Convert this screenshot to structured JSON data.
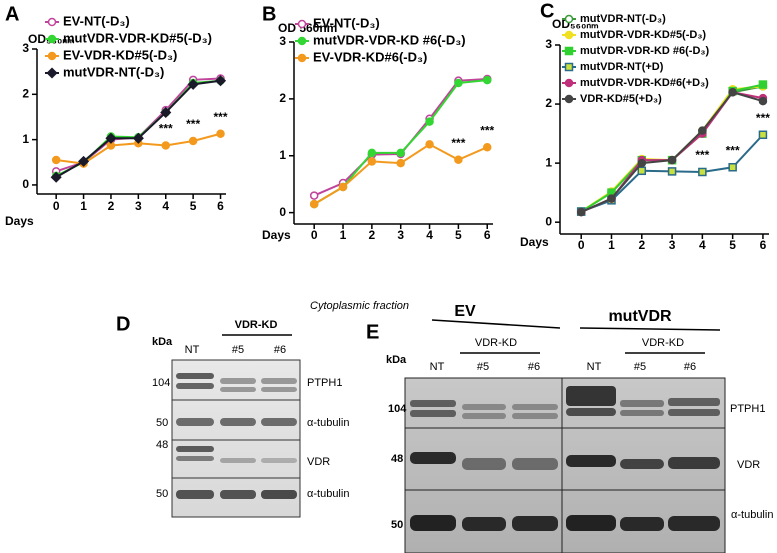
{
  "chart_data": [
    {
      "type": "line",
      "panel": "A",
      "ylabel": "OD₅₆₀ₙₘ",
      "xlabel": "Days",
      "xlim": [
        -0.7,
        6.2
      ],
      "ylim": [
        -0.2,
        3
      ],
      "xticks": [
        0,
        1,
        2,
        3,
        4,
        5,
        6
      ],
      "yticks": [
        0,
        1,
        2,
        3
      ],
      "x": [
        0,
        1,
        2,
        3,
        4,
        5,
        6
      ],
      "series": [
        {
          "name": "EV-NT(-D₃)",
          "color": "#c0449c",
          "marker": "circle",
          "fill": "#ffffff",
          "values": [
            0.3,
            0.5,
            1.0,
            1.05,
            1.65,
            2.32,
            2.35
          ]
        },
        {
          "name": "mutVDR-VDR-KD#5(-D₃)",
          "color": "#33d633",
          "marker": "circle",
          "fill": "#33d633",
          "values": [
            0.2,
            0.5,
            1.07,
            1.05,
            1.6,
            2.25,
            2.3
          ]
        },
        {
          "name": "EV-VDR-KD#5(-D₃)",
          "color": "#f39a1e",
          "marker": "circle",
          "fill": "#f39a1e",
          "values": [
            0.55,
            0.47,
            0.87,
            0.92,
            0.87,
            0.97,
            1.13
          ]
        },
        {
          "name": "mutVDR-NT(-D₃)",
          "color": "#1a1a2a",
          "marker": "diamond",
          "fill": "#1a1a2a",
          "values": [
            0.17,
            0.52,
            1.03,
            1.03,
            1.6,
            2.22,
            2.3
          ]
        }
      ],
      "annotations": {
        "text": "***",
        "x": [
          4,
          5,
          6
        ]
      }
    },
    {
      "type": "line",
      "panel": "B",
      "ylabel": "OD 560nm",
      "xlabel": "Days",
      "xlim": [
        -0.7,
        6.2
      ],
      "ylim": [
        -0.2,
        3
      ],
      "xticks": [
        0,
        1,
        2,
        3,
        4,
        5,
        6
      ],
      "yticks": [
        0,
        1,
        2,
        3
      ],
      "x": [
        0,
        1,
        2,
        3,
        4,
        5,
        6
      ],
      "series": [
        {
          "name": "EV-NT(-D₃)",
          "color": "#c0449c",
          "marker": "circle",
          "fill": "#ffffff",
          "values": [
            0.3,
            0.52,
            1.02,
            1.03,
            1.65,
            2.32,
            2.35
          ]
        },
        {
          "name": "mutVDR-VDR-KD #6(-D₃)",
          "color": "#33d633",
          "marker": "circle",
          "fill": "#33d633",
          "values": [
            0.15,
            0.45,
            1.05,
            1.05,
            1.6,
            2.28,
            2.33
          ]
        },
        {
          "name": "EV-VDR-KD#6(-D₃)",
          "color": "#f39a1e",
          "marker": "circle",
          "fill": "#f39a1e",
          "values": [
            0.15,
            0.45,
            0.9,
            0.87,
            1.2,
            0.93,
            1.15
          ]
        }
      ],
      "annotations": {
        "text": "***",
        "x": [
          5,
          6
        ]
      }
    },
    {
      "type": "line",
      "panel": "C",
      "ylabel": "OD₅₆₀ₙₘ",
      "xlabel": "Days",
      "xlim": [
        -0.7,
        6.2
      ],
      "ylim": [
        -0.2,
        3
      ],
      "xticks": [
        0,
        1,
        2,
        3,
        4,
        5,
        6
      ],
      "yticks": [
        0,
        1,
        2,
        3
      ],
      "x": [
        0,
        1,
        2,
        3,
        4,
        5,
        6
      ],
      "series": [
        {
          "name": "mutVDR-NT(-D₃)",
          "color": "#3a9a3a",
          "marker": "circle",
          "fill": "#ffffff",
          "values": [
            0.18,
            0.5,
            1.05,
            1.05,
            1.55,
            2.2,
            2.3
          ]
        },
        {
          "name": "mutVDR-VDR-KD#5(-D₃)",
          "color": "#f0e020",
          "marker": "circle",
          "fill": "#f0e020",
          "values": [
            0.18,
            0.52,
            1.07,
            1.05,
            1.55,
            2.25,
            2.3
          ]
        },
        {
          "name": "mutVDR-VDR-KD #6(-D₃)",
          "color": "#30d030",
          "marker": "square",
          "fill": "#30d030",
          "values": [
            0.18,
            0.5,
            1.05,
            1.05,
            1.5,
            2.22,
            2.33
          ]
        },
        {
          "name": "mutVDR-NT(+D)",
          "color": "#2a6a8a",
          "marker": "square",
          "fill": "#c8e040",
          "values": [
            0.18,
            0.37,
            0.87,
            0.86,
            0.85,
            0.93,
            1.48
          ]
        },
        {
          "name": "mutVDR-VDR-KD#6(+D₃)",
          "color": "#c0307a",
          "marker": "circle",
          "fill": "#c0307a",
          "values": [
            0.17,
            0.4,
            1.05,
            1.05,
            1.5,
            2.2,
            2.1
          ]
        },
        {
          "name": "VDR-KD#5(+D₃)",
          "color": "#444444",
          "marker": "circle",
          "fill": "#444444",
          "values": [
            0.17,
            0.4,
            1.0,
            1.05,
            1.55,
            2.2,
            2.05
          ]
        }
      ],
      "annotations": {
        "text": "***",
        "x": [
          4,
          5,
          6
        ]
      }
    }
  ],
  "blots": [
    {
      "panel": "D",
      "kda": "kDa",
      "group": "VDR-KD",
      "lanes": [
        "NT",
        "#5",
        "#6"
      ],
      "rows": [
        {
          "mw": "104",
          "protein": "PTPH1"
        },
        {
          "mw": "50",
          "protein": "α-tubulin"
        },
        {
          "mw": "48",
          "protein": "VDR"
        },
        {
          "mw": "50",
          "protein": "α-tubulin"
        }
      ]
    },
    {
      "panel": "E",
      "fraction": "Cytoplasmic fraction",
      "groups": [
        "EV",
        "mutVDR"
      ],
      "subgroup": "VDR-KD",
      "kda": "kDa",
      "lanes": [
        "NT",
        "#5",
        "#6",
        "NT",
        "#5",
        "#6"
      ],
      "rows": [
        {
          "mw": "104",
          "protein": "PTPH1"
        },
        {
          "mw": "48",
          "protein": "VDR"
        },
        {
          "mw": "50",
          "protein": "α-tubulin"
        }
      ]
    }
  ]
}
